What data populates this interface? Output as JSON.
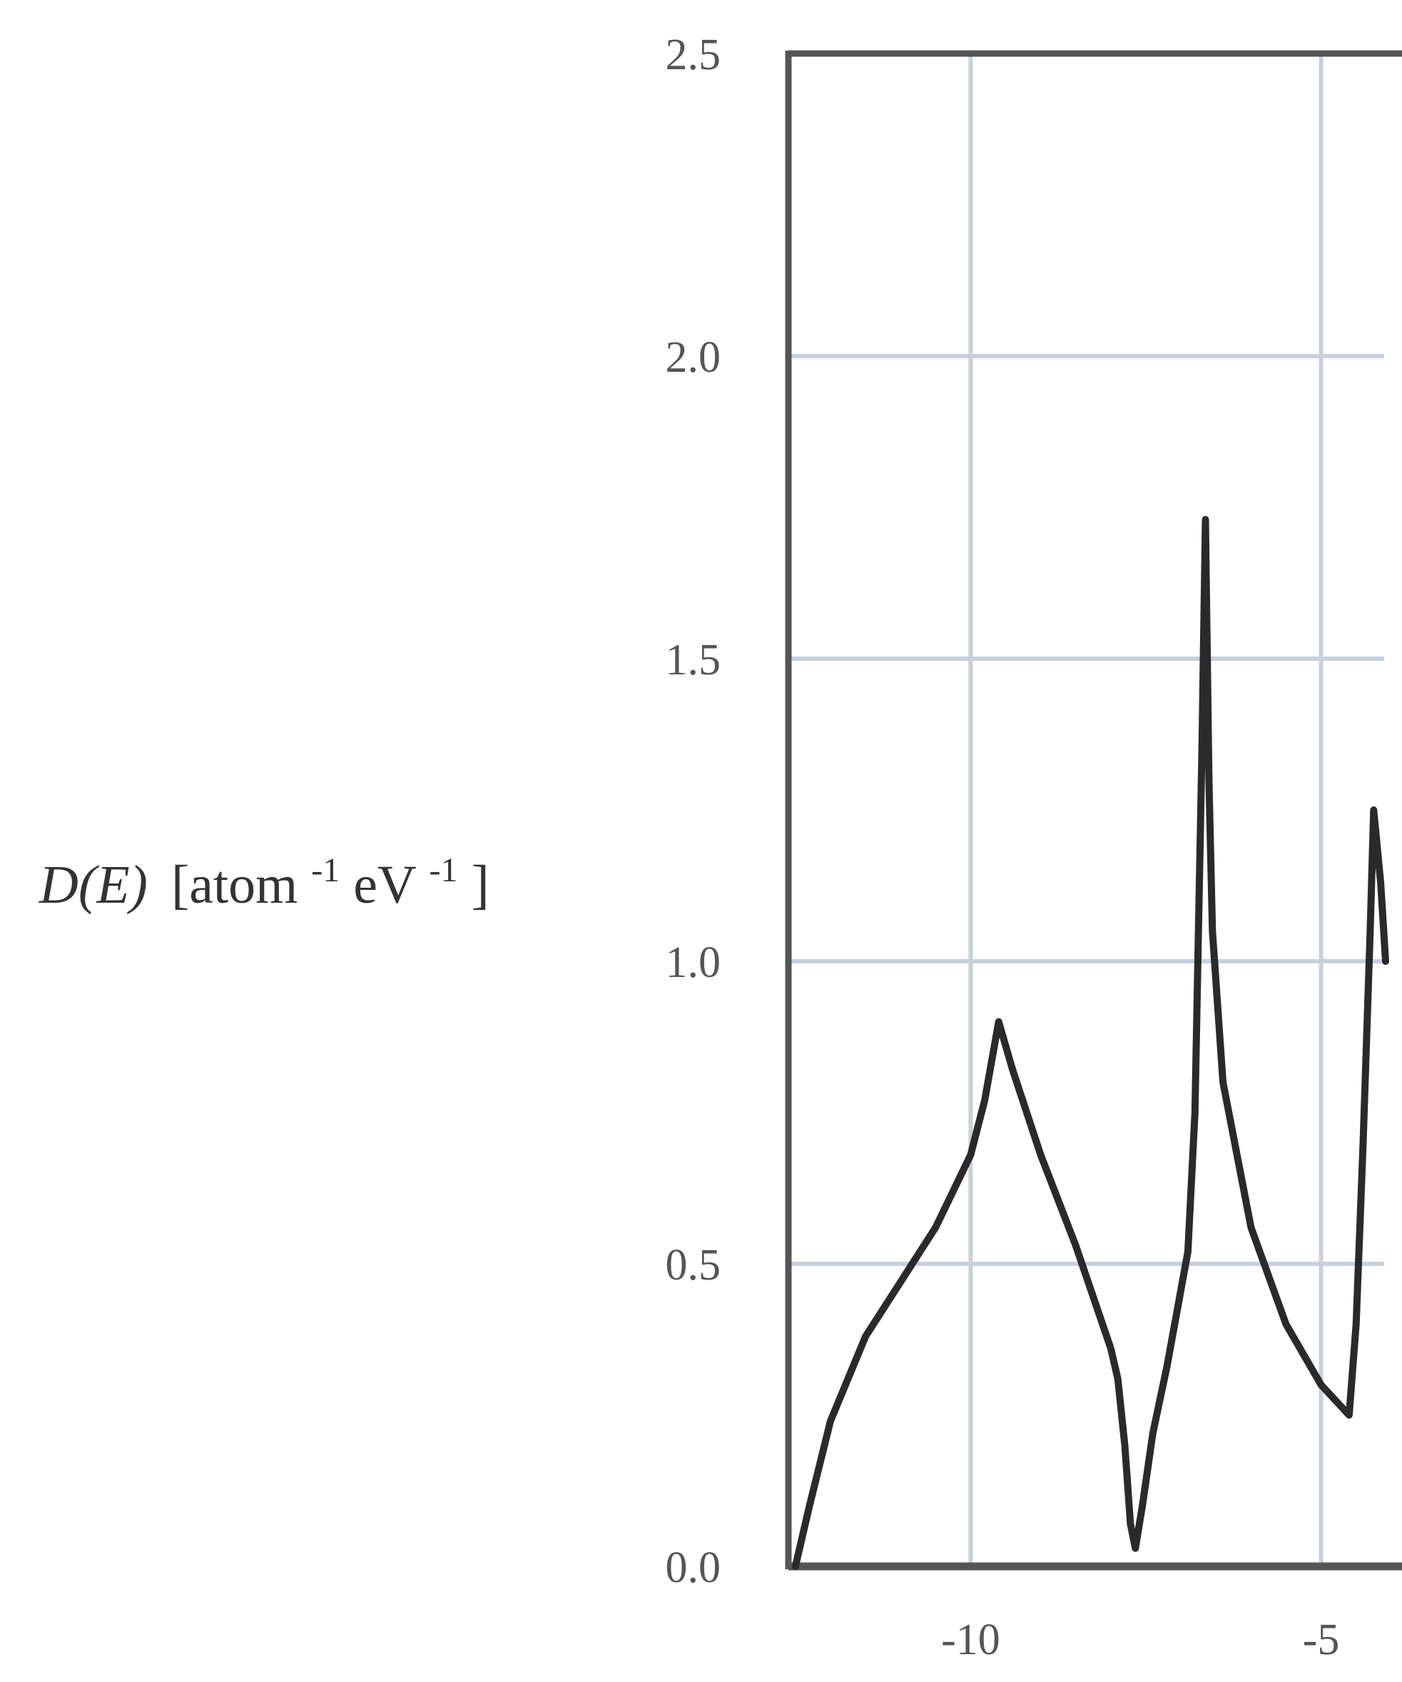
{
  "chart_data": {
    "type": "line",
    "title": "",
    "xlabel": "",
    "ylabel": {
      "func": "D(E)",
      "bracket_open": "[atom",
      "sup1": "-1",
      "mid": " eV",
      "sup2": "-1",
      "bracket_close": "]"
    },
    "xlim": [
      -12.6,
      -4.1
    ],
    "ylim": [
      0.0,
      2.5
    ],
    "x_ticks": [
      {
        "value": -10,
        "label": "-10"
      },
      {
        "value": -5,
        "label": "-5"
      }
    ],
    "y_ticks": [
      {
        "value": 0.0,
        "label": "0.0"
      },
      {
        "value": 0.5,
        "label": "0.5"
      },
      {
        "value": 1.0,
        "label": "1.0"
      },
      {
        "value": 1.5,
        "label": "1.5"
      },
      {
        "value": 2.0,
        "label": "2.0"
      },
      {
        "value": 2.5,
        "label": "2.5"
      }
    ],
    "grid": true,
    "colors": {
      "line": "#2a2a2a",
      "grid": "#c9d0dc",
      "frame": "#555555"
    },
    "series": [
      {
        "values": [
          [
            -12.5,
            0.0
          ],
          [
            -12.3,
            0.1
          ],
          [
            -12.0,
            0.24
          ],
          [
            -11.5,
            0.38
          ],
          [
            -11.0,
            0.47
          ],
          [
            -10.5,
            0.56
          ],
          [
            -10.0,
            0.68
          ],
          [
            -9.8,
            0.77
          ],
          [
            -9.6,
            0.9
          ],
          [
            -9.4,
            0.82
          ],
          [
            -9.0,
            0.68
          ],
          [
            -8.5,
            0.53
          ],
          [
            -8.0,
            0.36
          ],
          [
            -7.9,
            0.31
          ],
          [
            -7.8,
            0.2
          ],
          [
            -7.72,
            0.07
          ],
          [
            -7.65,
            0.03
          ],
          [
            -7.55,
            0.1
          ],
          [
            -7.4,
            0.22
          ],
          [
            -7.2,
            0.33
          ],
          [
            -6.9,
            0.52
          ],
          [
            -6.8,
            0.75
          ],
          [
            -6.75,
            1.05
          ],
          [
            -6.7,
            1.35
          ],
          [
            -6.65,
            1.73
          ],
          [
            -6.6,
            1.3
          ],
          [
            -6.55,
            1.05
          ],
          [
            -6.4,
            0.8
          ],
          [
            -6.0,
            0.56
          ],
          [
            -5.5,
            0.4
          ],
          [
            -5.0,
            0.3
          ],
          [
            -4.6,
            0.25
          ],
          [
            -4.5,
            0.4
          ],
          [
            -4.4,
            0.7
          ],
          [
            -4.3,
            1.05
          ],
          [
            -4.25,
            1.25
          ],
          [
            -4.15,
            1.13
          ],
          [
            -4.08,
            1.0
          ]
        ]
      }
    ]
  }
}
